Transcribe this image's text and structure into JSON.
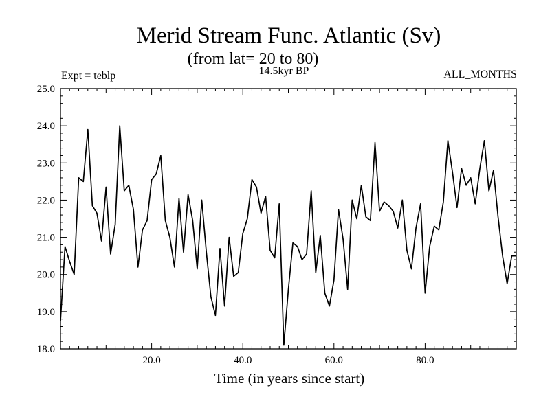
{
  "chart_data": {
    "type": "line",
    "title": "Merid Stream Func. Atlantic (Sv)",
    "subtitle": "(from lat= 20 to 80)",
    "annotations": {
      "left": "Expt = teblp",
      "center": "14.5kyr BP",
      "right": "ALL_MONTHS"
    },
    "xlabel": "Time (in years since start)",
    "ylabel": "",
    "xlim": [
      0,
      100
    ],
    "ylim": [
      18.0,
      25.0
    ],
    "xticks": [
      "20.0",
      "40.0",
      "60.0",
      "80.0"
    ],
    "yticks": [
      "18.0",
      "19.0",
      "20.0",
      "21.0",
      "22.0",
      "23.0",
      "24.0",
      "25.0"
    ],
    "grid": false,
    "series": [
      {
        "name": "Merid Stream Func. Atlantic",
        "x": [
          0,
          1,
          2,
          3,
          4,
          5,
          6,
          7,
          8,
          9,
          10,
          11,
          12,
          13,
          14,
          15,
          16,
          17,
          18,
          19,
          20,
          21,
          22,
          23,
          24,
          25,
          26,
          27,
          28,
          29,
          30,
          31,
          32,
          33,
          34,
          35,
          36,
          37,
          38,
          39,
          40,
          41,
          42,
          43,
          44,
          45,
          46,
          47,
          48,
          49,
          50,
          51,
          52,
          53,
          54,
          55,
          56,
          57,
          58,
          59,
          60,
          61,
          62,
          63,
          64,
          65,
          66,
          67,
          68,
          69,
          70,
          71,
          72,
          73,
          74,
          75,
          76,
          77,
          78,
          79,
          80,
          81,
          82,
          83,
          84,
          85,
          86,
          87,
          88,
          89,
          90,
          91,
          92,
          93,
          94,
          95,
          96,
          97,
          98,
          99,
          100
        ],
        "values": [
          18.75,
          20.75,
          20.35,
          20.0,
          22.6,
          22.5,
          23.9,
          21.85,
          21.65,
          20.9,
          22.35,
          20.55,
          21.35,
          24.0,
          22.25,
          22.4,
          21.75,
          20.2,
          21.2,
          21.45,
          22.55,
          22.7,
          23.2,
          21.45,
          21.0,
          20.2,
          22.05,
          20.6,
          22.15,
          21.45,
          20.15,
          22.0,
          20.6,
          19.4,
          18.9,
          20.7,
          19.15,
          21.0,
          19.95,
          20.05,
          21.1,
          21.5,
          22.55,
          22.35,
          21.65,
          22.1,
          20.65,
          20.45,
          21.9,
          18.1,
          19.6,
          20.85,
          20.75,
          20.4,
          20.55,
          22.25,
          20.05,
          21.05,
          19.5,
          19.15,
          19.85,
          21.75,
          20.95,
          19.6,
          22.0,
          21.5,
          22.4,
          21.55,
          21.45,
          23.55,
          21.7,
          21.95,
          21.85,
          21.7,
          21.25,
          22.0,
          20.65,
          20.15,
          21.25,
          21.9,
          19.5,
          20.75,
          21.3,
          21.2,
          21.95,
          23.6,
          22.75,
          21.8,
          22.85,
          22.4,
          22.6,
          21.9,
          22.85,
          23.6,
          22.25,
          22.8,
          21.55,
          20.5,
          19.75,
          20.5,
          20.5
        ]
      }
    ]
  }
}
